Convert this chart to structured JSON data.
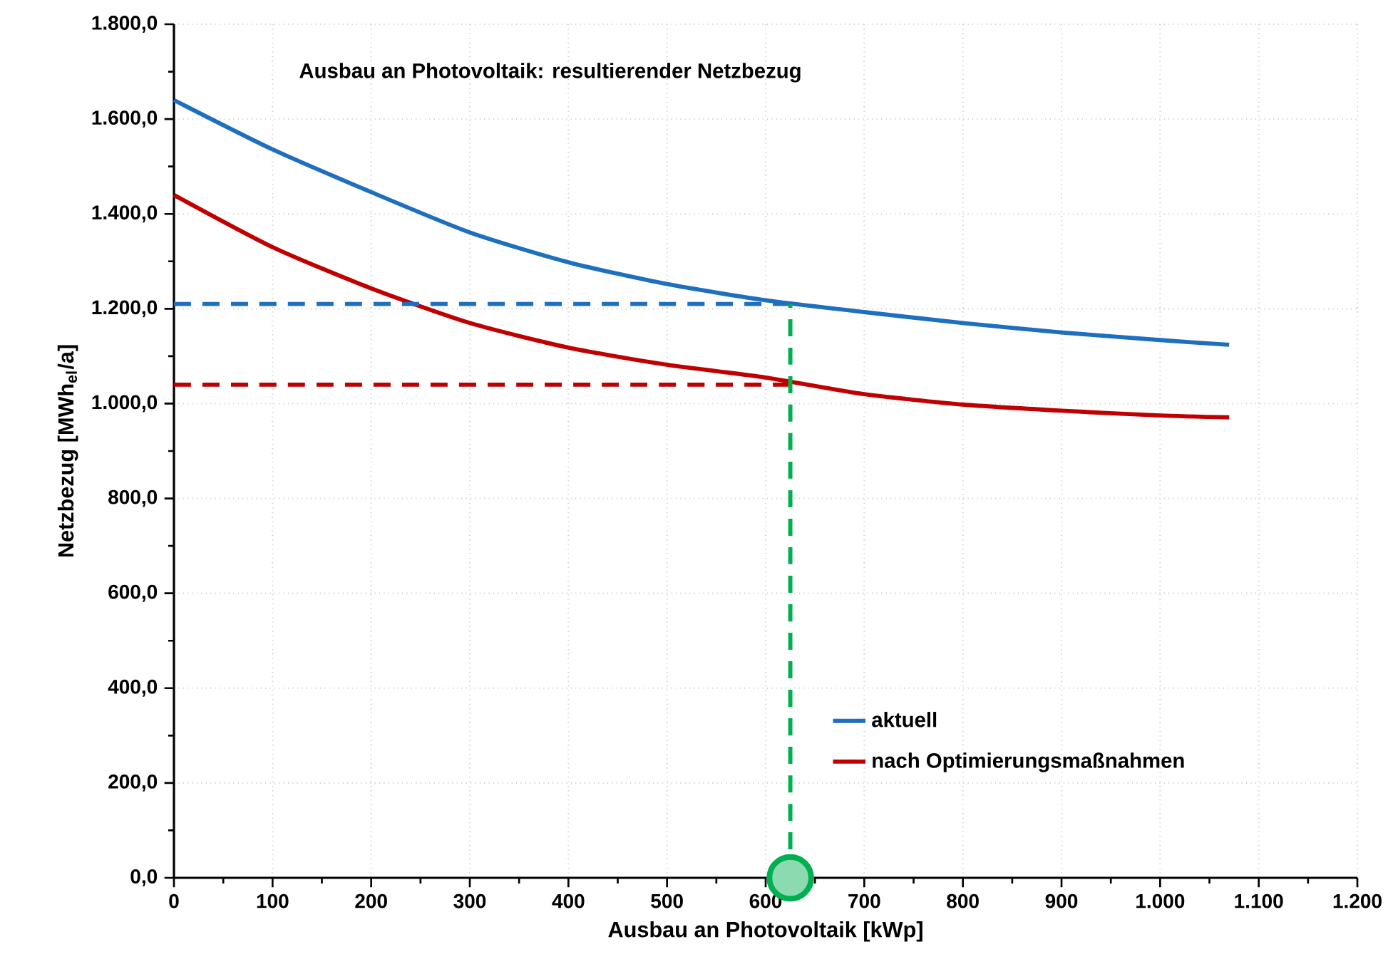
{
  "chart_data": {
    "type": "line",
    "title": "Ausbau an Photovoltaik: resultierender Netzbezug",
    "xlabel": "Ausbau an Photovoltaik [kWp]",
    "ylabel": "Netzbezug [MWh$_{el}$/a]",
    "xlim": [
      0,
      1200
    ],
    "ylim": [
      0,
      1800
    ],
    "xticks": [
      0,
      100,
      200,
      300,
      400,
      500,
      600,
      700,
      800,
      900,
      {
        "value": 1000,
        "label": "1.000"
      },
      {
        "value": 1100,
        "label": "1.100"
      },
      {
        "value": 1200,
        "label": "1.200"
      }
    ],
    "yticks": [
      {
        "value": 0,
        "label": "0,0"
      },
      {
        "value": 200,
        "label": "200,0"
      },
      {
        "value": 400,
        "label": "400,0"
      },
      {
        "value": 600,
        "label": "600,0"
      },
      {
        "value": 800,
        "label": "800,0"
      },
      {
        "value": 1000,
        "label": "1.000,0"
      },
      {
        "value": 1200,
        "label": "1.200,0"
      },
      {
        "value": 1400,
        "label": "1.400,0"
      },
      {
        "value": 1600,
        "label": "1.600,0"
      },
      {
        "value": 1800,
        "label": "1.800,0"
      }
    ],
    "grid": true,
    "legend": "bottom right",
    "marker": "none",
    "series": [
      {
        "name": "aktuell",
        "color": "#1f6fc0",
        "x": [
          0,
          100,
          200,
          300,
          400,
          500,
          600,
          700,
          800,
          900,
          1000,
          1070
        ],
        "values": [
          1640,
          1536,
          1446,
          1361,
          1298,
          1252,
          1218,
          1193,
          1170,
          1150,
          1134,
          1124
        ]
      },
      {
        "name": "nach Optimierungsmaßnahmen",
        "color": "#c00000",
        "x": [
          0,
          100,
          200,
          300,
          400,
          500,
          600,
          700,
          800,
          900,
          1000,
          1070
        ],
        "values": [
          1440,
          1330,
          1243,
          1170,
          1118,
          1082,
          1055,
          1020,
          998,
          985,
          975,
          971
        ]
      },
      {
        "type": "line",
        "line_style": "dashed",
        "color": "#1f6fc0",
        "x": [
          0,
          625
        ],
        "values": [
          1210,
          1210
        ]
      },
      {
        "type": "line",
        "line_style": "dashed",
        "color": "#c00000",
        "x": [
          0,
          625
        ],
        "values": [
          1040,
          1040
        ]
      },
      {
        "type": "line",
        "line_style": "dashed",
        "color": "#00b050",
        "x": [
          625,
          625
        ],
        "values": [
          0,
          1210
        ]
      },
      {
        "type": "scatter",
        "marker": "circle",
        "color": "#00b050",
        "x": [
          625
        ],
        "values": [
          0
        ]
      }
    ]
  }
}
